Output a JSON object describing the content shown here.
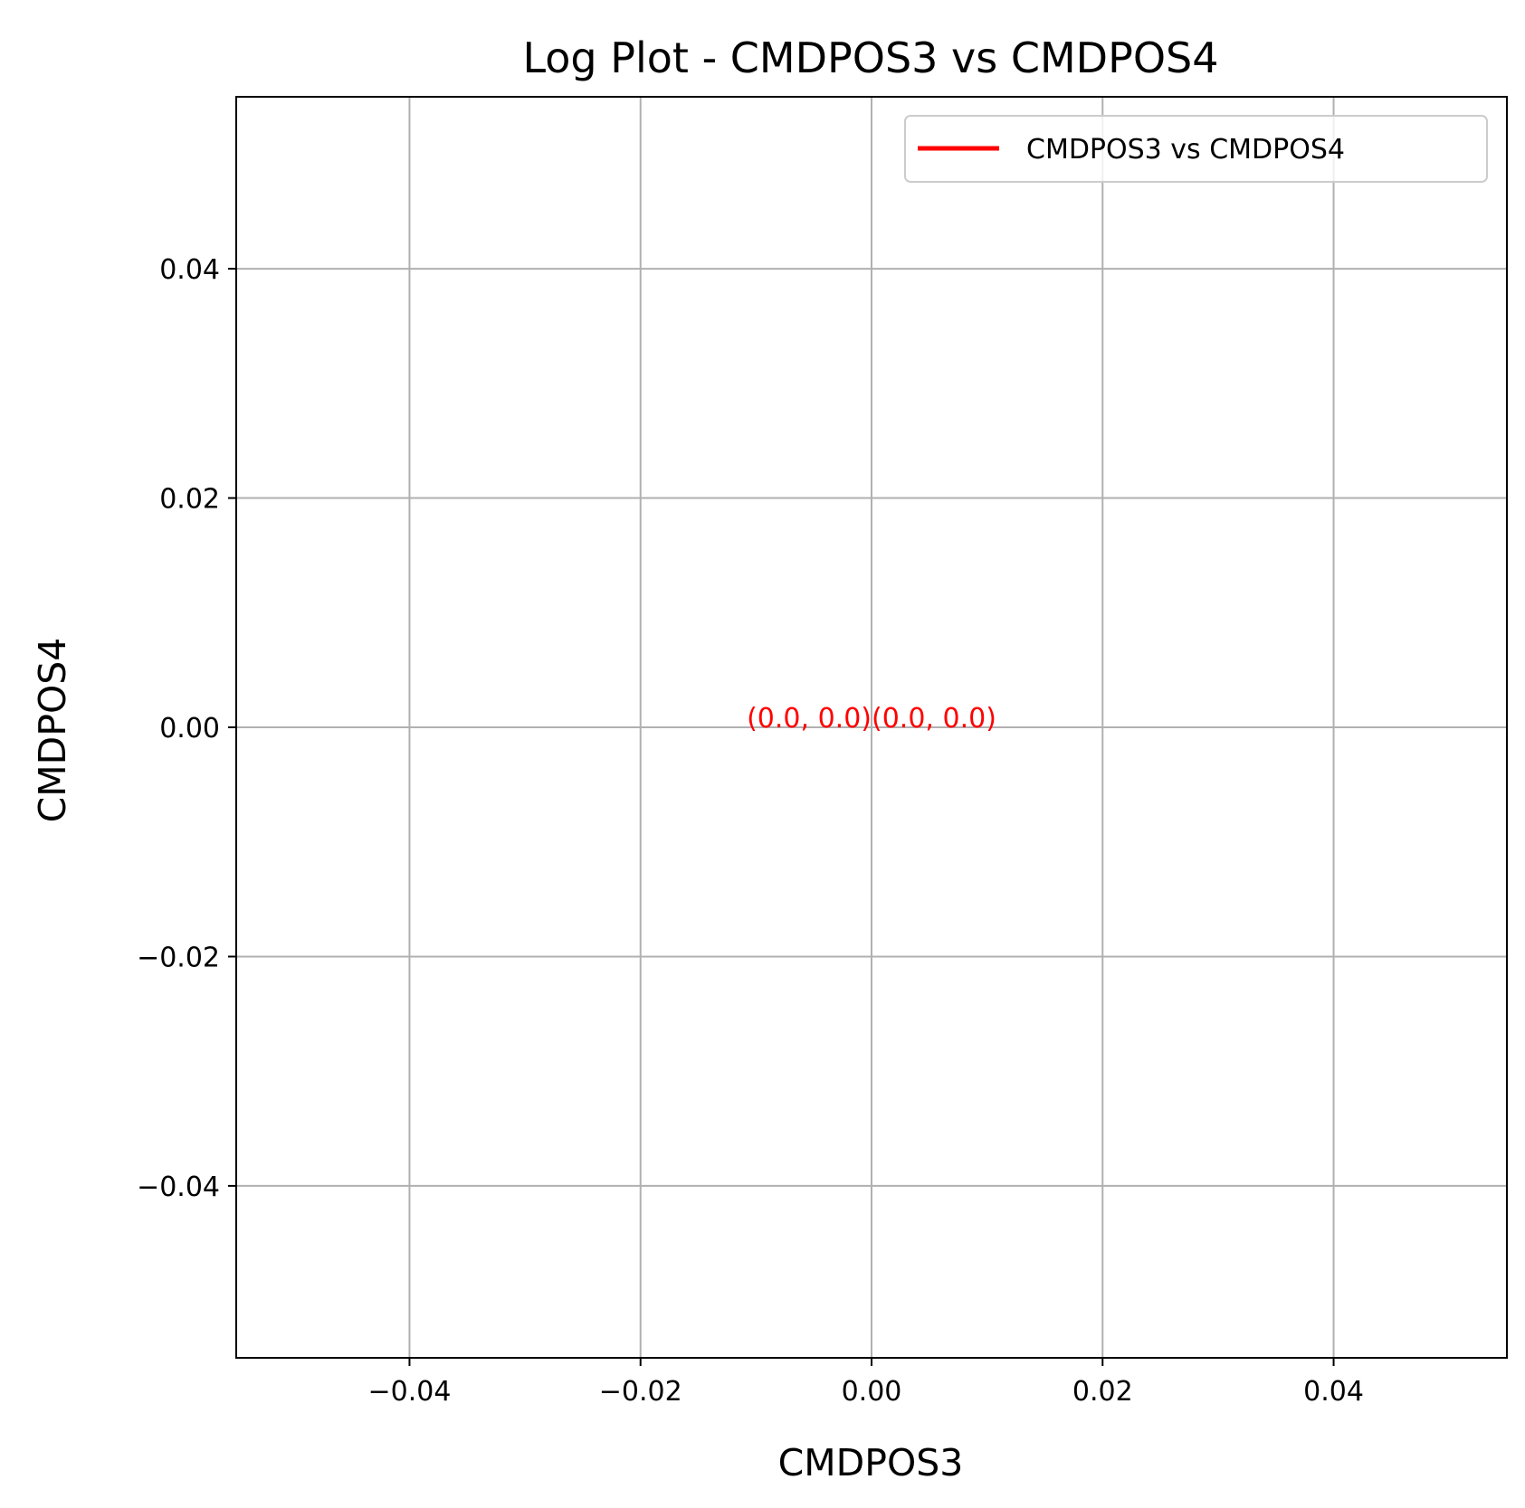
{
  "chart_data": {
    "type": "line",
    "title": "Log Plot - CMDPOS3 vs CMDPOS4",
    "xlabel": "CMDPOS3",
    "ylabel": "CMDPOS4",
    "xlim": [
      -0.055,
      0.055
    ],
    "ylim": [
      -0.055,
      0.055
    ],
    "x_ticks": [
      -0.04,
      -0.02,
      0.0,
      0.02,
      0.04
    ],
    "x_tick_labels": [
      "−0.04",
      "−0.02",
      "0.00",
      "0.02",
      "0.04"
    ],
    "y_ticks": [
      -0.04,
      -0.02,
      0.0,
      0.02,
      0.04
    ],
    "y_tick_labels": [
      "−0.04",
      "−0.02",
      "0.00",
      "0.02",
      "0.04"
    ],
    "grid": true,
    "legend_position": "top-right",
    "series": [
      {
        "name": "CMDPOS3 vs CMDPOS4",
        "color": "#ff0000",
        "x": [
          0.0,
          0.0
        ],
        "y": [
          0.0,
          0.0
        ]
      }
    ],
    "annotations": [
      {
        "text": "(0.0, 0.0)",
        "x": 0.0,
        "y": 0.0,
        "color": "#ff0000",
        "align": "right"
      },
      {
        "text": "(0.0, 0.0)",
        "x": 0.0,
        "y": 0.0,
        "color": "#ff0000",
        "align": "left"
      }
    ]
  }
}
